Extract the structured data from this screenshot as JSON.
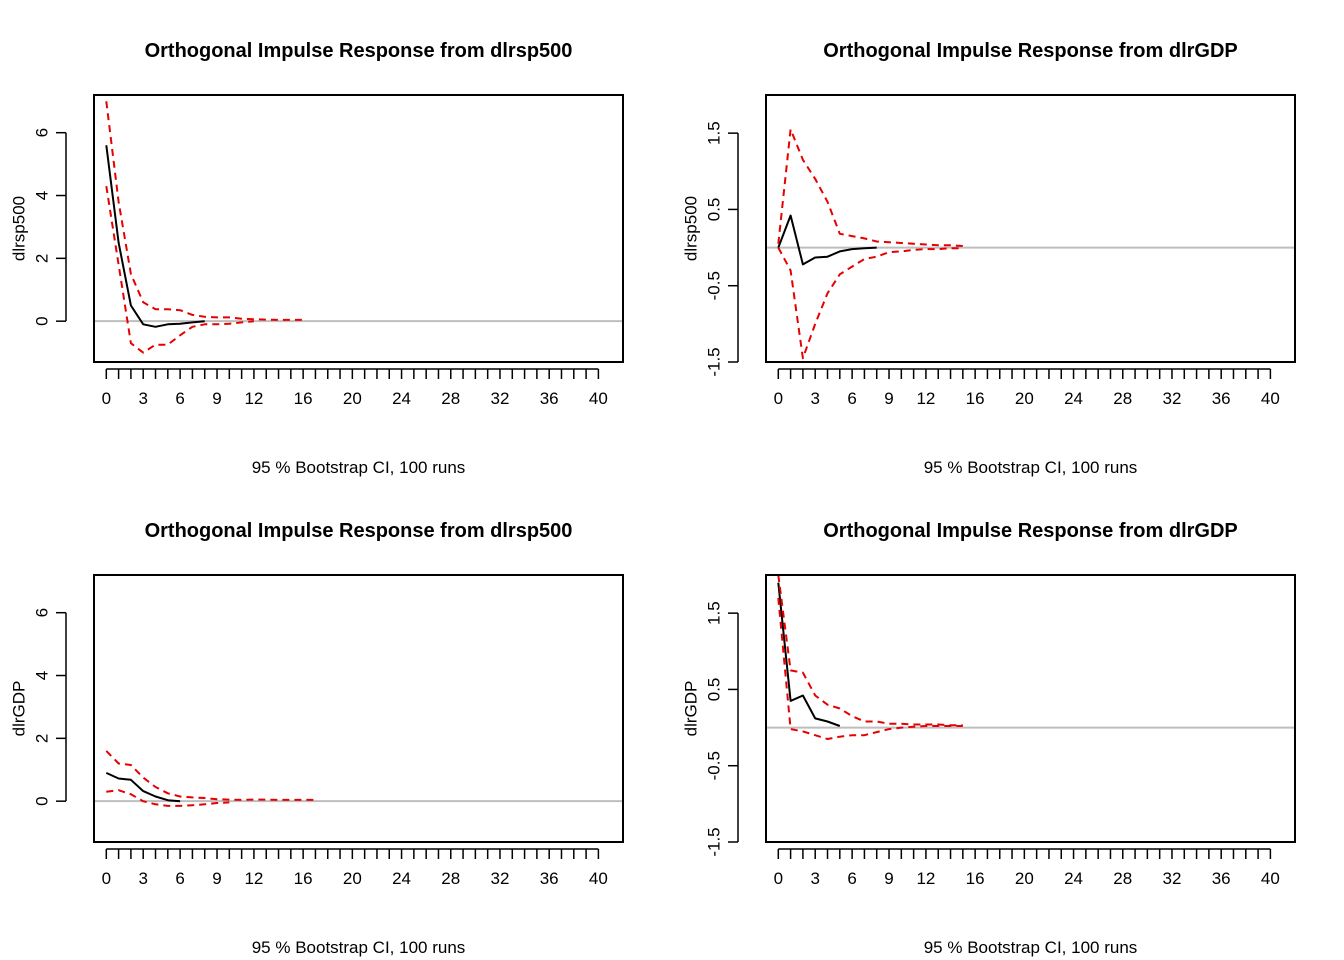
{
  "chart_data": [
    {
      "type": "line",
      "title": "Orthogonal Impulse Response from dlrsp500",
      "ylabel": "dlrsp500",
      "xlabel": "95 % Bootstrap CI,  100 runs",
      "xlim": [
        -1,
        42
      ],
      "ylim": [
        -1.3,
        7.2
      ],
      "xticks": [
        0,
        3,
        6,
        9,
        12,
        16,
        20,
        24,
        28,
        32,
        36,
        40
      ],
      "yticks": [
        0,
        2,
        4,
        6
      ],
      "yticklabels": [
        "0",
        "2",
        "4",
        "6"
      ],
      "zero_line_color": "#bebebe",
      "series": [
        {
          "role": "irf",
          "color": "#000000",
          "dashed": false,
          "x": [
            0,
            1,
            2,
            3,
            4,
            5,
            6,
            7,
            8
          ],
          "y": [
            5.6,
            2.5,
            0.5,
            -0.1,
            -0.18,
            -0.1,
            -0.08,
            -0.04,
            0.0
          ]
        },
        {
          "role": "upper",
          "color": "#e60000",
          "dashed": true,
          "x": [
            0,
            1,
            2,
            3,
            4,
            5,
            6,
            7,
            8,
            9,
            10,
            11,
            12,
            13,
            14,
            15,
            16
          ],
          "y": [
            7.0,
            3.8,
            1.5,
            0.6,
            0.38,
            0.38,
            0.35,
            0.2,
            0.14,
            0.12,
            0.12,
            0.08,
            0.06,
            0.05,
            0.04,
            0.04,
            0.04
          ]
        },
        {
          "role": "lower",
          "color": "#e60000",
          "dashed": true,
          "x": [
            0,
            1,
            2,
            3,
            4,
            5,
            6,
            7,
            8,
            9,
            10,
            11,
            12
          ],
          "y": [
            4.3,
            1.8,
            -0.7,
            -1.0,
            -0.75,
            -0.75,
            -0.45,
            -0.18,
            -0.1,
            -0.1,
            -0.08,
            -0.04,
            0.0
          ]
        }
      ]
    },
    {
      "type": "line",
      "title": "Orthogonal Impulse Response from dlrGDP",
      "ylabel": "dlrsp500",
      "xlabel": "95 % Bootstrap CI,  100 runs",
      "xlim": [
        -1,
        42
      ],
      "ylim": [
        -1.5,
        2.0
      ],
      "xticks": [
        0,
        3,
        6,
        9,
        12,
        16,
        20,
        24,
        28,
        32,
        36,
        40
      ],
      "yticks": [
        -1.5,
        -0.5,
        0.5,
        1.5
      ],
      "yticklabels": [
        "-1.5",
        "-0.5",
        "0.5",
        "1.5"
      ],
      "zero_line_color": "#bebebe",
      "series": [
        {
          "role": "irf",
          "color": "#000000",
          "dashed": false,
          "x": [
            0,
            1,
            2,
            3,
            4,
            5,
            6,
            7,
            8
          ],
          "y": [
            0.0,
            0.42,
            -0.22,
            -0.13,
            -0.12,
            -0.05,
            -0.02,
            -0.01,
            0.0
          ]
        },
        {
          "role": "upper",
          "color": "#e60000",
          "dashed": true,
          "x": [
            0,
            1,
            2,
            3,
            4,
            5,
            6,
            7,
            8,
            9,
            10,
            11,
            12,
            13,
            14,
            15
          ],
          "y": [
            0.05,
            1.55,
            1.15,
            0.9,
            0.6,
            0.18,
            0.15,
            0.12,
            0.08,
            0.07,
            0.06,
            0.05,
            0.04,
            0.03,
            0.03,
            0.02
          ]
        },
        {
          "role": "lower",
          "color": "#e60000",
          "dashed": true,
          "x": [
            0,
            1,
            2,
            3,
            4,
            5,
            6,
            7,
            8,
            9,
            10,
            11,
            12,
            13,
            14,
            15
          ],
          "y": [
            0.0,
            -0.3,
            -1.45,
            -1.0,
            -0.6,
            -0.35,
            -0.25,
            -0.15,
            -0.12,
            -0.06,
            -0.05,
            -0.03,
            -0.02,
            -0.02,
            -0.01,
            -0.01
          ]
        }
      ]
    },
    {
      "type": "line",
      "title": "Orthogonal Impulse Response from dlrsp500",
      "ylabel": "dlrGDP",
      "xlabel": "95 % Bootstrap CI,  100 runs",
      "xlim": [
        -1,
        42
      ],
      "ylim": [
        -1.3,
        7.2
      ],
      "xticks": [
        0,
        3,
        6,
        9,
        12,
        16,
        20,
        24,
        28,
        32,
        36,
        40
      ],
      "yticks": [
        0,
        2,
        4,
        6
      ],
      "yticklabels": [
        "0",
        "2",
        "4",
        "6"
      ],
      "zero_line_color": "#bebebe",
      "series": [
        {
          "role": "irf",
          "color": "#000000",
          "dashed": false,
          "x": [
            0,
            1,
            2,
            3,
            4,
            5,
            6
          ],
          "y": [
            0.9,
            0.72,
            0.68,
            0.32,
            0.15,
            0.03,
            0.0
          ]
        },
        {
          "role": "upper",
          "color": "#e60000",
          "dashed": true,
          "x": [
            0,
            1,
            2,
            3,
            4,
            5,
            6,
            7,
            8,
            9,
            10,
            11,
            12,
            13,
            14,
            15,
            16,
            17
          ],
          "y": [
            1.6,
            1.2,
            1.15,
            0.75,
            0.45,
            0.25,
            0.15,
            0.12,
            0.1,
            0.06,
            0.05,
            0.04,
            0.05,
            0.05,
            0.04,
            0.04,
            0.04,
            0.04
          ]
        },
        {
          "role": "lower",
          "color": "#e60000",
          "dashed": true,
          "x": [
            0,
            1,
            2,
            3,
            4,
            5,
            6,
            7,
            8,
            9,
            10
          ],
          "y": [
            0.3,
            0.35,
            0.22,
            0.0,
            -0.1,
            -0.15,
            -0.15,
            -0.13,
            -0.1,
            -0.06,
            -0.04
          ]
        }
      ]
    },
    {
      "type": "line",
      "title": "Orthogonal Impulse Response from dlrGDP",
      "ylabel": "dlrGDP",
      "xlabel": "95 % Bootstrap CI,  100 runs",
      "xlim": [
        -1,
        42
      ],
      "ylim": [
        -1.5,
        2.0
      ],
      "xticks": [
        0,
        3,
        6,
        9,
        12,
        16,
        20,
        24,
        28,
        32,
        36,
        40
      ],
      "yticks": [
        -1.5,
        -0.5,
        0.5,
        1.5
      ],
      "yticklabels": [
        "-1.5",
        "-0.5",
        "0.5",
        "1.5"
      ],
      "zero_line_color": "#bebebe",
      "series": [
        {
          "role": "irf",
          "color": "#000000",
          "dashed": false,
          "x": [
            0,
            1,
            2,
            3,
            4,
            5
          ],
          "y": [
            1.9,
            0.35,
            0.42,
            0.12,
            0.08,
            0.02
          ]
        },
        {
          "role": "upper",
          "color": "#e60000",
          "dashed": true,
          "x": [
            0,
            1,
            2,
            3,
            4,
            5,
            6,
            7,
            8,
            9,
            10,
            11,
            12,
            13,
            14,
            15
          ],
          "y": [
            2.0,
            0.75,
            0.72,
            0.42,
            0.3,
            0.25,
            0.15,
            0.08,
            0.08,
            0.05,
            0.05,
            0.04,
            0.04,
            0.04,
            0.03,
            0.03
          ]
        },
        {
          "role": "lower",
          "color": "#e60000",
          "dashed": true,
          "x": [
            0,
            1,
            2,
            3,
            4,
            5,
            6,
            7,
            8,
            9,
            10,
            11,
            12,
            13,
            14,
            15
          ],
          "y": [
            1.7,
            -0.02,
            -0.05,
            -0.1,
            -0.15,
            -0.12,
            -0.1,
            -0.1,
            -0.06,
            -0.02,
            0.0,
            0.01,
            0.02,
            0.02,
            0.02,
            0.02
          ]
        }
      ]
    }
  ]
}
